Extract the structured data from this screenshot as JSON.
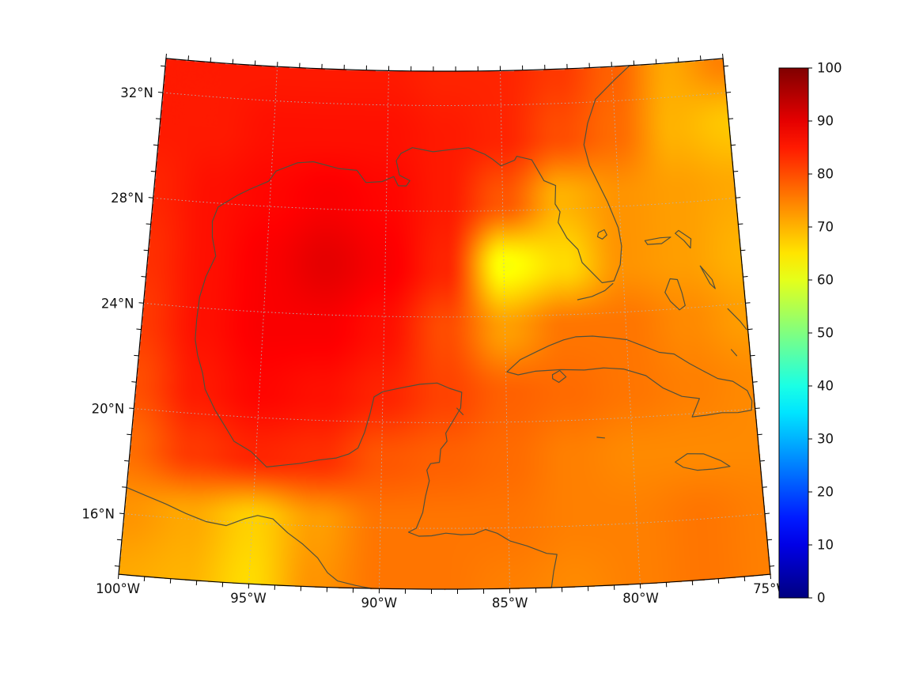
{
  "chart_data": {
    "type": "heatmap",
    "title": "",
    "projection": {
      "kind": "lambert-conic",
      "central_longitude": -87.5,
      "cone_constant": 0.42,
      "lon_range": [
        -100,
        -75
      ],
      "lat_range": [
        13.7,
        33.3
      ]
    },
    "x_axis": {
      "label": "",
      "tick_values": [
        -100,
        -95,
        -90,
        -85,
        -80,
        -75
      ],
      "tick_labels": [
        "100°W",
        "95°W",
        "90°W",
        "85°W",
        "80°W",
        "75°W"
      ],
      "minor_tick_step_deg": 1
    },
    "y_axis": {
      "label": "",
      "tick_values": [
        16,
        20,
        24,
        28,
        32
      ],
      "tick_labels": [
        "16°N",
        "20°N",
        "24°N",
        "28°N",
        "32°N"
      ],
      "minor_tick_step_deg": 1
    },
    "graticule": {
      "parallels": [
        16,
        20,
        24,
        28,
        32
      ],
      "meridians": [
        -95,
        -90,
        -85,
        -80
      ]
    },
    "colorbar": {
      "min": 0,
      "max": 100,
      "colormap": "jet",
      "tick_values": [
        0,
        10,
        20,
        30,
        40,
        50,
        60,
        70,
        80,
        90,
        100
      ],
      "tick_labels": [
        "0",
        "10",
        "20",
        "30",
        "40",
        "50",
        "60",
        "70",
        "80",
        "90",
        "100"
      ]
    },
    "grid_field": {
      "units": "colorbar scale 0-100",
      "lon_min": -100,
      "lon_max": -75,
      "lat_max": 33.3,
      "lat_min": 13.7,
      "rows": 9,
      "cols": 11,
      "values": [
        [
          85,
          85,
          85,
          85,
          85,
          84,
          84,
          82,
          78,
          71,
          75
        ],
        [
          85,
          85,
          86,
          86,
          86,
          85,
          84,
          80,
          77,
          70,
          68
        ],
        [
          84,
          86,
          87,
          88,
          87,
          85,
          79,
          70,
          73,
          72,
          71
        ],
        [
          83,
          86,
          88,
          90,
          88,
          84,
          62,
          66,
          73,
          72,
          70
        ],
        [
          82,
          86,
          88,
          88,
          86,
          80,
          72,
          76,
          76,
          74,
          72
        ],
        [
          80,
          85,
          87,
          86,
          84,
          81,
          78,
          77,
          76,
          75,
          74
        ],
        [
          77,
          82,
          84,
          83,
          79,
          78,
          77,
          75,
          74,
          74,
          74
        ],
        [
          73,
          71,
          67,
          72,
          76,
          76,
          76,
          75,
          75,
          76,
          75
        ],
        [
          71,
          70,
          66,
          73,
          76,
          76,
          75,
          74,
          75,
          76,
          75
        ]
      ]
    },
    "colors": {
      "coastline": "#50503c",
      "graticule": "#b5b5b5",
      "frame": "#000000",
      "label": "#111111",
      "background": "#ffffff"
    },
    "coastlines": {
      "mainland": [
        [
          -79.2,
          33.3
        ],
        [
          -79.9,
          32.8
        ],
        [
          -80.8,
          32.1
        ],
        [
          -81.2,
          31.2
        ],
        [
          -81.4,
          30.4
        ],
        [
          -81.2,
          29.6
        ],
        [
          -80.7,
          28.6
        ],
        [
          -80.5,
          28.2
        ],
        [
          -80.1,
          27.2
        ],
        [
          -80.0,
          26.5
        ],
        [
          -80.1,
          25.8
        ],
        [
          -80.4,
          25.2
        ],
        [
          -80.9,
          25.15
        ],
        [
          -81.1,
          25.35
        ],
        [
          -81.7,
          25.95
        ],
        [
          -81.85,
          26.45
        ],
        [
          -82.3,
          26.9
        ],
        [
          -82.65,
          27.5
        ],
        [
          -82.55,
          27.9
        ],
        [
          -82.75,
          28.2
        ],
        [
          -82.7,
          28.9
        ],
        [
          -83.2,
          29.1
        ],
        [
          -83.7,
          29.9
        ],
        [
          -84.35,
          30.05
        ],
        [
          -84.45,
          29.9
        ],
        [
          -85.05,
          29.7
        ],
        [
          -85.4,
          29.95
        ],
        [
          -85.75,
          30.15
        ],
        [
          -86.45,
          30.4
        ],
        [
          -87.25,
          30.33
        ],
        [
          -88.0,
          30.25
        ],
        [
          -88.9,
          30.4
        ],
        [
          -89.4,
          30.18
        ],
        [
          -89.6,
          29.9
        ],
        [
          -89.45,
          29.35
        ],
        [
          -89.0,
          29.15
        ],
        [
          -89.15,
          28.95
        ],
        [
          -89.5,
          28.95
        ],
        [
          -89.7,
          29.3
        ],
        [
          -90.2,
          29.1
        ],
        [
          -90.9,
          29.05
        ],
        [
          -91.3,
          29.5
        ],
        [
          -92.1,
          29.55
        ],
        [
          -93.2,
          29.77
        ],
        [
          -93.9,
          29.7
        ],
        [
          -94.8,
          29.35
        ],
        [
          -95.1,
          28.95
        ],
        [
          -95.9,
          28.6
        ],
        [
          -96.4,
          28.35
        ],
        [
          -97.2,
          27.85
        ],
        [
          -97.4,
          27.3
        ],
        [
          -97.35,
          26.7
        ],
        [
          -97.15,
          26.0
        ],
        [
          -97.5,
          25.2
        ],
        [
          -97.7,
          24.4
        ],
        [
          -97.75,
          23.55
        ],
        [
          -97.75,
          22.8
        ],
        [
          -97.6,
          22.2
        ],
        [
          -97.35,
          21.55
        ],
        [
          -97.2,
          20.95
        ],
        [
          -96.75,
          20.2
        ],
        [
          -96.3,
          19.6
        ],
        [
          -95.9,
          19.05
        ],
        [
          -95.2,
          18.7
        ],
        [
          -94.55,
          18.15
        ],
        [
          -93.9,
          18.25
        ],
        [
          -93.2,
          18.35
        ],
        [
          -92.5,
          18.5
        ],
        [
          -91.8,
          18.6
        ],
        [
          -91.3,
          18.77
        ],
        [
          -90.95,
          19.0
        ],
        [
          -90.7,
          19.6
        ],
        [
          -90.5,
          20.3
        ],
        [
          -90.35,
          20.95
        ],
        [
          -90.0,
          21.15
        ],
        [
          -89.3,
          21.3
        ],
        [
          -88.5,
          21.45
        ],
        [
          -87.8,
          21.5
        ],
        [
          -87.3,
          21.3
        ],
        [
          -86.8,
          21.15
        ],
        [
          -86.85,
          20.55
        ],
        [
          -87.2,
          20.0
        ],
        [
          -87.45,
          19.6
        ],
        [
          -87.4,
          19.3
        ],
        [
          -87.65,
          19.0
        ],
        [
          -87.7,
          18.5
        ],
        [
          -88.05,
          18.45
        ],
        [
          -88.2,
          18.2
        ],
        [
          -88.1,
          17.8
        ],
        [
          -88.25,
          17.2
        ],
        [
          -88.35,
          16.6
        ],
        [
          -88.6,
          16.0
        ],
        [
          -88.9,
          15.85
        ],
        [
          -88.5,
          15.7
        ],
        [
          -88.0,
          15.72
        ],
        [
          -87.45,
          15.82
        ],
        [
          -86.85,
          15.76
        ],
        [
          -86.35,
          15.78
        ],
        [
          -85.9,
          15.95
        ],
        [
          -85.45,
          15.8
        ],
        [
          -84.95,
          15.5
        ],
        [
          -84.3,
          15.3
        ],
        [
          -83.55,
          15.0
        ],
        [
          -83.15,
          14.95
        ],
        [
          -83.3,
          14.3
        ],
        [
          -83.4,
          13.7
        ]
      ],
      "pacific_coast": [
        [
          -100.0,
          17.0
        ],
        [
          -99.2,
          16.75
        ],
        [
          -98.4,
          16.5
        ],
        [
          -97.6,
          16.2
        ],
        [
          -96.8,
          15.95
        ],
        [
          -96.0,
          15.85
        ],
        [
          -95.3,
          16.15
        ],
        [
          -94.8,
          16.3
        ],
        [
          -94.2,
          16.2
        ],
        [
          -93.6,
          15.7
        ],
        [
          -93.0,
          15.3
        ],
        [
          -92.4,
          14.8
        ],
        [
          -92.0,
          14.25
        ],
        [
          -91.6,
          13.95
        ],
        [
          -90.9,
          13.8
        ],
        [
          -90.3,
          13.7
        ]
      ],
      "cuba": [
        [
          -84.95,
          21.9
        ],
        [
          -84.4,
          22.35
        ],
        [
          -83.7,
          22.65
        ],
        [
          -83.2,
          22.85
        ],
        [
          -82.6,
          23.05
        ],
        [
          -82.1,
          23.15
        ],
        [
          -81.4,
          23.15
        ],
        [
          -80.6,
          23.05
        ],
        [
          -80.0,
          22.95
        ],
        [
          -79.4,
          22.7
        ],
        [
          -78.7,
          22.4
        ],
        [
          -78.1,
          22.3
        ],
        [
          -77.5,
          21.9
        ],
        [
          -77.0,
          21.6
        ],
        [
          -76.4,
          21.25
        ],
        [
          -75.8,
          21.1
        ],
        [
          -75.25,
          20.7
        ],
        [
          -75.1,
          20.3
        ],
        [
          -75.15,
          19.95
        ],
        [
          -75.7,
          19.9
        ],
        [
          -76.35,
          19.95
        ],
        [
          -77.0,
          19.9
        ],
        [
          -77.55,
          19.88
        ],
        [
          -77.2,
          20.55
        ],
        [
          -77.9,
          20.68
        ],
        [
          -78.65,
          21.05
        ],
        [
          -79.3,
          21.55
        ],
        [
          -80.2,
          21.85
        ],
        [
          -81.0,
          21.93
        ],
        [
          -81.8,
          21.88
        ],
        [
          -82.75,
          21.93
        ],
        [
          -83.8,
          21.9
        ],
        [
          -84.5,
          21.78
        ],
        [
          -84.95,
          21.9
        ]
      ],
      "isla_juventud": [
        [
          -83.1,
          21.75
        ],
        [
          -82.8,
          21.9
        ],
        [
          -82.55,
          21.65
        ],
        [
          -82.85,
          21.45
        ],
        [
          -83.1,
          21.6
        ],
        [
          -83.1,
          21.75
        ]
      ],
      "jamaica": [
        [
          -78.35,
          18.22
        ],
        [
          -77.85,
          18.5
        ],
        [
          -77.2,
          18.45
        ],
        [
          -76.55,
          18.15
        ],
        [
          -76.2,
          17.9
        ],
        [
          -76.85,
          17.85
        ],
        [
          -77.5,
          17.85
        ],
        [
          -78.05,
          18.0
        ],
        [
          -78.35,
          18.22
        ]
      ],
      "florida_keys": [
        [
          -80.45,
          25.1
        ],
        [
          -80.8,
          24.85
        ],
        [
          -81.35,
          24.65
        ],
        [
          -81.95,
          24.55
        ]
      ],
      "lake_okeechobee": [
        [
          -80.95,
          27.05
        ],
        [
          -80.7,
          27.15
        ],
        [
          -80.6,
          26.95
        ],
        [
          -80.8,
          26.8
        ],
        [
          -81.0,
          26.9
        ],
        [
          -80.95,
          27.05
        ]
      ],
      "andros": [
        [
          -78.3,
          24.65
        ],
        [
          -78.05,
          25.15
        ],
        [
          -77.75,
          25.1
        ],
        [
          -77.6,
          24.6
        ],
        [
          -77.5,
          24.1
        ],
        [
          -77.75,
          23.95
        ],
        [
          -78.1,
          24.3
        ],
        [
          -78.3,
          24.65
        ]
      ],
      "grand_bahama": [
        [
          -79.0,
          26.65
        ],
        [
          -78.35,
          26.72
        ],
        [
          -77.9,
          26.72
        ],
        [
          -78.3,
          26.5
        ],
        [
          -78.9,
          26.5
        ],
        [
          -79.0,
          26.65
        ]
      ],
      "abaco": [
        [
          -77.55,
          26.95
        ],
        [
          -77.05,
          26.6
        ],
        [
          -77.1,
          26.25
        ],
        [
          -77.35,
          26.55
        ],
        [
          -77.7,
          26.85
        ],
        [
          -77.55,
          26.95
        ]
      ],
      "eleuthera": [
        [
          -76.75,
          25.55
        ],
        [
          -76.3,
          25.0
        ],
        [
          -76.2,
          24.65
        ],
        [
          -76.4,
          24.85
        ],
        [
          -76.65,
          25.35
        ],
        [
          -76.75,
          25.55
        ]
      ],
      "exuma_long_island": [
        [
          -75.75,
          23.85
        ],
        [
          -75.3,
          23.35
        ],
        [
          -75.05,
          23.0
        ]
      ],
      "ragged_islands": [
        [
          -75.75,
          22.3
        ],
        [
          -75.55,
          22.05
        ]
      ],
      "cayman": [
        [
          -81.4,
          19.32
        ],
        [
          -81.1,
          19.28
        ]
      ],
      "cozumel": [
        [
          -87.0,
          20.55
        ],
        [
          -86.75,
          20.3
        ]
      ]
    }
  }
}
